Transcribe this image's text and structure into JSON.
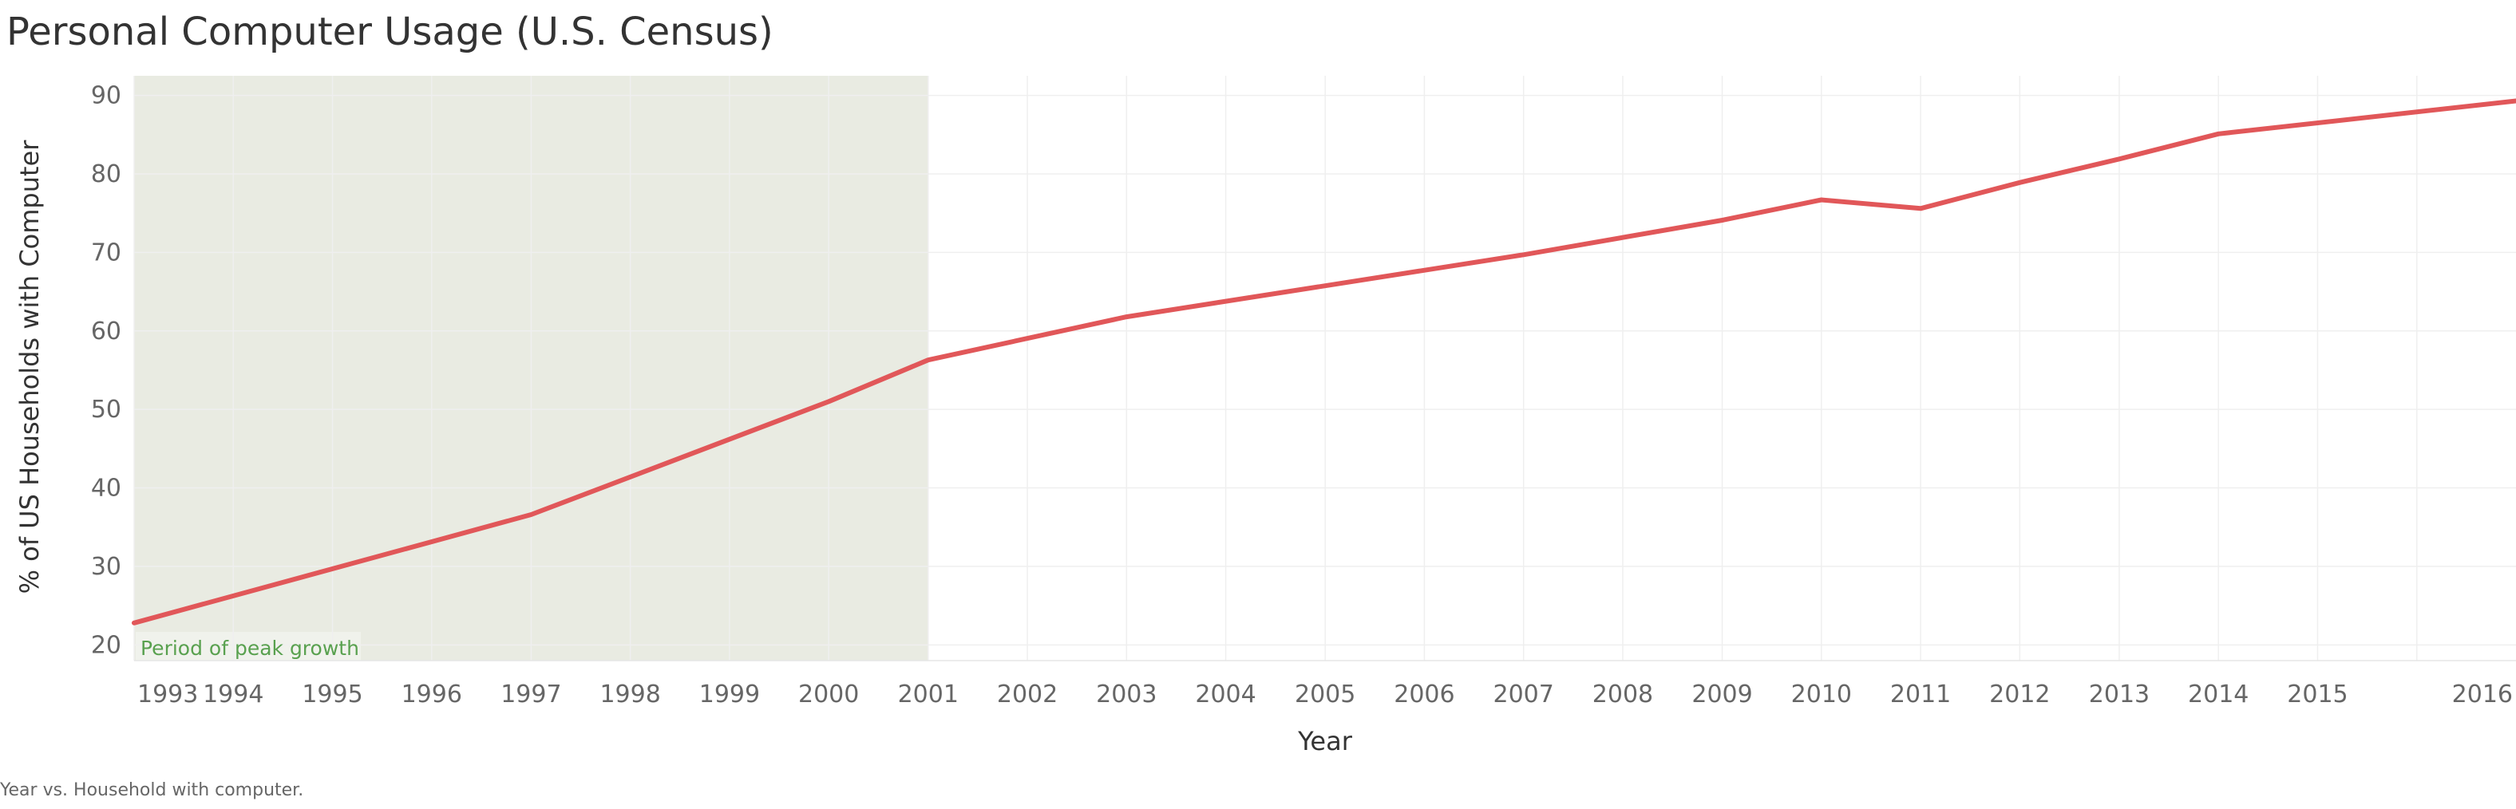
{
  "chart_data": {
    "type": "line",
    "title": "Personal Computer Usage (U.S. Census)",
    "xlabel": "Year",
    "ylabel": "% of US Households with Computer",
    "footnote": "Year vs. Household with computer.",
    "x_ticks": [
      "1993",
      "1994",
      "1995",
      "1996",
      "1997",
      "1998",
      "1999",
      "2000",
      "2001",
      "2002",
      "2003",
      "2004",
      "2005",
      "2006",
      "2007",
      "2008",
      "2009",
      "2010",
      "2011",
      "2012",
      "2013",
      "2014",
      "2015",
      "2016"
    ],
    "y_ticks": [
      20,
      30,
      40,
      50,
      60,
      70,
      80,
      90
    ],
    "ylim": [
      18,
      92.5
    ],
    "xlim": [
      "1993-01-01",
      "2016-12-31"
    ],
    "grid": true,
    "series": [
      {
        "color": "#e15759",
        "points": [
          {
            "x": "1993-01-01",
            "y": 22.8
          },
          {
            "x": "1997-01-01",
            "y": 36.6
          },
          {
            "x": "2000-01-01",
            "y": 51.0
          },
          {
            "x": "2001-01-01",
            "y": 56.3
          },
          {
            "x": "2003-01-01",
            "y": 61.8
          },
          {
            "x": "2007-01-01",
            "y": 69.7
          },
          {
            "x": "2009-01-01",
            "y": 74.1
          },
          {
            "x": "2010-01-01",
            "y": 76.7
          },
          {
            "x": "2011-01-01",
            "y": 75.6
          },
          {
            "x": "2012-01-01",
            "y": 78.9
          },
          {
            "x": "2013-01-01",
            "y": 81.9
          },
          {
            "x": "2014-01-01",
            "y": 85.1
          },
          {
            "x": "2016-12-31",
            "y": 89.3
          }
        ]
      }
    ],
    "annotations": [
      {
        "type": "band",
        "x_start": "1993-01-01",
        "x_end": "2001-01-01",
        "color": "#e9ebe2",
        "label": "Period of peak growth",
        "label_color": "#59a14f"
      }
    ]
  }
}
